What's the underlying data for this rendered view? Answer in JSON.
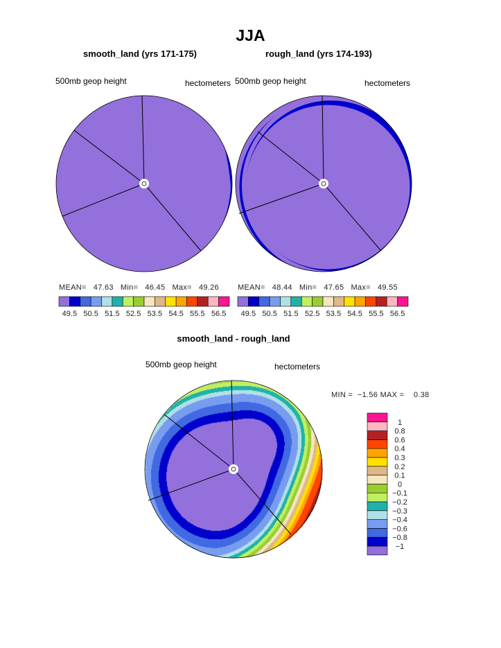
{
  "title": "JJA",
  "panels": [
    {
      "subtitle": "smooth_land (yrs 171-175)",
      "left_label": "500mb geop height",
      "right_label": "hectometers",
      "stats": {
        "mean_label": "MEAN=",
        "mean": "47.63",
        "min_label": "Min=",
        "min": "46.45",
        "max_label": "Max=",
        "max": "49.26"
      }
    },
    {
      "subtitle": "rough_land (yrs 174-193)",
      "left_label": "500mb geop height",
      "right_label": "hectometers",
      "stats": {
        "mean_label": "MEAN=",
        "mean": "48.44",
        "min_label": "Min=",
        "min": "47.65",
        "max_label": "Max=",
        "max": "49.55"
      }
    }
  ],
  "diff": {
    "subtitle": "smooth_land - rough_land",
    "left_label": "500mb geop height",
    "right_label": "hectometers",
    "min_label": "MIN =",
    "min": "−1.56",
    "max_label": "MAX =",
    "max": "0.38"
  },
  "chart_data": [
    {
      "type": "heatmap",
      "title": "smooth_land (yrs 171-175)",
      "projection": "polar",
      "units": "hectometers",
      "mean": 47.63,
      "min": 46.45,
      "max": 49.26,
      "levels": [
        "49.5",
        "50.5",
        "51.5",
        "52.5",
        "53.5",
        "54.5",
        "55.5",
        "56.5"
      ],
      "colors": [
        "#9370DB",
        "#0000CD",
        "#4169E1",
        "#789CF0",
        "#B0E0E6",
        "#20B2AA",
        "#C0F060",
        "#9ACD32",
        "#F5E6C0",
        "#DEB887",
        "#FFE000",
        "#FFA500",
        "#FF4500",
        "#B22222",
        "#FFB6C1",
        "#FF1493"
      ]
    },
    {
      "type": "heatmap",
      "title": "rough_land (yrs 174-193)",
      "projection": "polar",
      "units": "hectometers",
      "mean": 48.44,
      "min": 47.65,
      "max": 49.55,
      "levels": [
        "49.5",
        "50.5",
        "51.5",
        "52.5",
        "53.5",
        "54.5",
        "55.5",
        "56.5"
      ],
      "colors": [
        "#9370DB",
        "#0000CD",
        "#4169E1",
        "#789CF0",
        "#B0E0E6",
        "#20B2AA",
        "#C0F060",
        "#9ACD32",
        "#F5E6C0",
        "#DEB887",
        "#FFE000",
        "#FFA500",
        "#FF4500",
        "#B22222",
        "#FFB6C1",
        "#FF1493"
      ]
    },
    {
      "type": "heatmap",
      "title": "smooth_land - rough_land",
      "projection": "polar",
      "units": "hectometers",
      "min": -1.56,
      "max": 0.38,
      "levels": [
        "−1",
        "−0.8",
        "−0.6",
        "−0.4",
        "−0.3",
        "−0.2",
        "−0.1",
        "0",
        "0.1",
        "0.2",
        "0.3",
        "0.4",
        "0.6",
        "0.8",
        "1"
      ],
      "level_values": [
        -1,
        -0.8,
        -0.6,
        -0.4,
        -0.3,
        -0.2,
        -0.1,
        0,
        0.1,
        0.2,
        0.3,
        0.4,
        0.6,
        0.8,
        1
      ],
      "colors": [
        "#9370DB",
        "#0000CD",
        "#4169E1",
        "#789CF0",
        "#B0E0E6",
        "#20B2AA",
        "#C0F060",
        "#9ACD32",
        "#F5E6C0",
        "#DEB887",
        "#FFE000",
        "#FFA500",
        "#FF4500",
        "#B22222",
        "#FFB6C1",
        "#FF1493"
      ]
    }
  ]
}
